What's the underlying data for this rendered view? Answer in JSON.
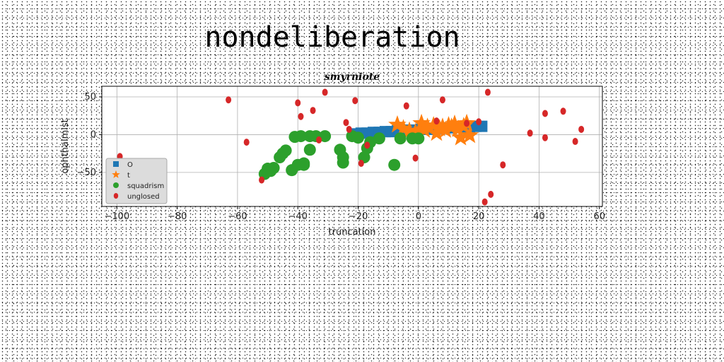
{
  "figure_title": "nondeliberation",
  "chart_data": {
    "type": "scatter",
    "title": "smyrniote",
    "xlabel": "truncation",
    "ylabel": "ophthalmist",
    "xlim": [
      -105,
      61
    ],
    "ylim": [
      -95,
      64
    ],
    "xticks": [
      -100,
      -80,
      -60,
      -40,
      -20,
      0,
      20,
      40,
      60
    ],
    "yticks": [
      50,
      0,
      -50
    ],
    "xtick_labels": [
      "−100",
      "−80",
      "−60",
      "−40",
      "−20",
      "0",
      "20",
      "40",
      "60"
    ],
    "ytick_labels": [
      "50",
      "0",
      "−50"
    ],
    "grid": true,
    "legend_position": "lower-left",
    "series": [
      {
        "name": "O",
        "marker": "square",
        "color": "#1f77b4",
        "x": [
          -21,
          -19,
          -17,
          -15,
          -13,
          -11,
          -9,
          -7,
          -5,
          -3,
          -1,
          1,
          3,
          5,
          7,
          9,
          11,
          13,
          15,
          17,
          19,
          21
        ],
        "y": [
          1,
          2,
          2,
          3,
          3,
          4,
          4,
          5,
          5,
          6,
          6,
          7,
          7,
          8,
          8,
          9,
          9,
          10,
          10,
          10,
          11,
          11
        ]
      },
      {
        "name": "t",
        "marker": "star",
        "color": "#ff7f0e",
        "x": [
          -7,
          -5,
          -3,
          -1,
          1,
          2,
          3,
          5,
          6,
          7,
          8,
          9,
          10,
          11,
          12,
          13,
          14,
          15,
          16,
          17
        ],
        "y": [
          13,
          8,
          5,
          3,
          15,
          6,
          10,
          12,
          2,
          8,
          10,
          6,
          12,
          10,
          14,
          7,
          -4,
          11,
          15,
          -1
        ]
      },
      {
        "name": "squadrism",
        "marker": "circle",
        "color": "#2ca02c",
        "x": [
          -51,
          -50,
          -49,
          -48,
          -46,
          -45,
          -44,
          -42,
          -41,
          -40,
          -39,
          -38,
          -38,
          -36,
          -36,
          -34,
          -31,
          -26,
          -25,
          -25,
          -22,
          -20,
          -18,
          -17,
          -16,
          -13,
          -8,
          -6,
          -2,
          0
        ],
        "y": [
          -52,
          -45,
          -48,
          -44,
          -30,
          -25,
          -21,
          -47,
          -3,
          -40,
          -2,
          -38,
          -40,
          -2,
          -20,
          -2,
          -2,
          -20,
          -30,
          -37,
          -2,
          -4,
          -30,
          -18,
          -10,
          -5,
          -40,
          -5,
          -5,
          -5
        ]
      },
      {
        "name": "unglosed",
        "marker": "thin-diamond",
        "color": "#d62728",
        "x": [
          -99,
          -63,
          -57,
          -52,
          -40,
          -39,
          -35,
          -33,
          -31,
          -24,
          -23,
          -21,
          -19,
          -17,
          -4,
          -1,
          6,
          8,
          16,
          20,
          22,
          23,
          24,
          28,
          37,
          42,
          42,
          48,
          52,
          54
        ],
        "y": [
          -29,
          46,
          -10,
          -60,
          42,
          24,
          32,
          -7,
          56,
          16,
          7,
          45,
          -38,
          -14,
          38,
          -31,
          18,
          46,
          15,
          17,
          -89,
          56,
          -79,
          -40,
          2,
          -4,
          28,
          31,
          -9,
          7
        ]
      }
    ]
  }
}
